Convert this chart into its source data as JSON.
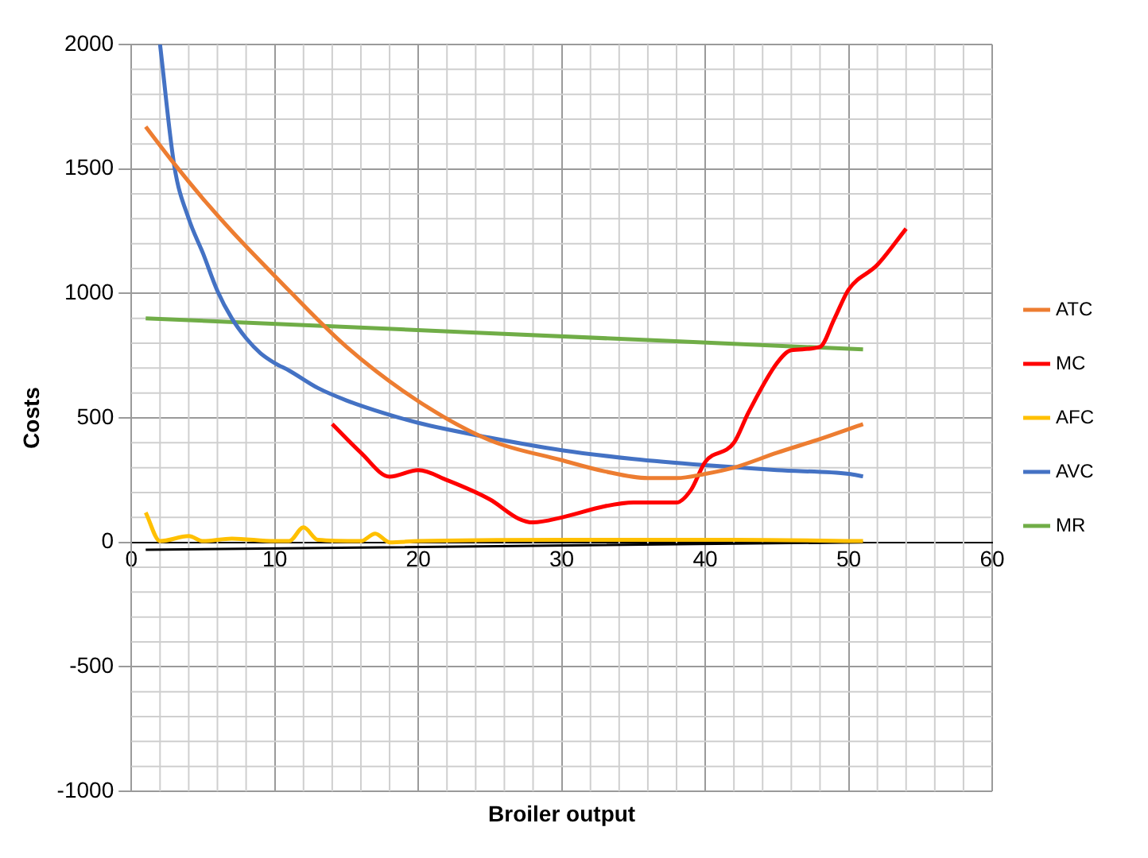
{
  "chart_data": {
    "type": "line",
    "xlabel": "Broiler output",
    "ylabel": "Costs",
    "xlim": [
      0,
      60
    ],
    "xticks": [
      0,
      10,
      20,
      30,
      40,
      50,
      60
    ],
    "ylim": [
      -1000,
      2000
    ],
    "yticks": [
      -1000,
      -500,
      0,
      500,
      1000,
      1500,
      2000
    ],
    "grid": true,
    "legend": "right",
    "marker": "none",
    "line_style": "solid",
    "series": [
      {
        "name": "ATC",
        "color": "#ed7d31",
        "x": [
          1,
          3,
          5,
          7,
          10,
          15,
          20,
          25,
          30,
          33,
          36,
          38,
          40,
          42,
          45,
          48,
          51
        ],
        "values": [
          1670,
          1520,
          1380,
          1250,
          1070,
          785,
          567,
          410,
          330,
          285,
          258,
          258,
          275,
          300,
          360,
          415,
          475
        ]
      },
      {
        "name": "MC",
        "color": "#ff0000",
        "x": [
          14,
          16,
          18,
          20,
          22,
          25,
          27,
          28,
          30,
          33,
          35,
          38,
          39,
          40,
          42,
          43,
          45,
          46,
          48,
          49,
          50,
          52,
          54
        ],
        "values": [
          475,
          360,
          264,
          290,
          250,
          172,
          95,
          80,
          100,
          145,
          160,
          160,
          210,
          323,
          400,
          520,
          720,
          772,
          785,
          898,
          1016,
          1115,
          1260
        ]
      },
      {
        "name": "AFC",
        "color": "#ffc000",
        "x": [
          1,
          2,
          4,
          5,
          7,
          10,
          11,
          12,
          13,
          16,
          17,
          18,
          20,
          30,
          42,
          51
        ],
        "values": [
          120,
          5,
          25,
          5,
          15,
          5,
          5,
          60,
          10,
          5,
          35,
          0,
          5,
          10,
          10,
          5
        ]
      },
      {
        "name": "AVC",
        "color": "#4472c4",
        "x": [
          2,
          3,
          4,
          5,
          6,
          7,
          8,
          9,
          10,
          11,
          13,
          15,
          17,
          20,
          25,
          30,
          35,
          40,
          45,
          50,
          51
        ],
        "values": [
          2000,
          1510,
          1300,
          1160,
          1010,
          900,
          820,
          760,
          720,
          690,
          620,
          570,
          530,
          480,
          420,
          370,
          335,
          310,
          290,
          275,
          265
        ]
      },
      {
        "name": "MR",
        "color": "#70ad47",
        "x": [
          1,
          25,
          51
        ],
        "values": [
          900,
          840,
          775
        ]
      },
      {
        "color": "#000000",
        "x": [
          1,
          51
        ],
        "values": [
          -30,
          0
        ]
      }
    ]
  }
}
